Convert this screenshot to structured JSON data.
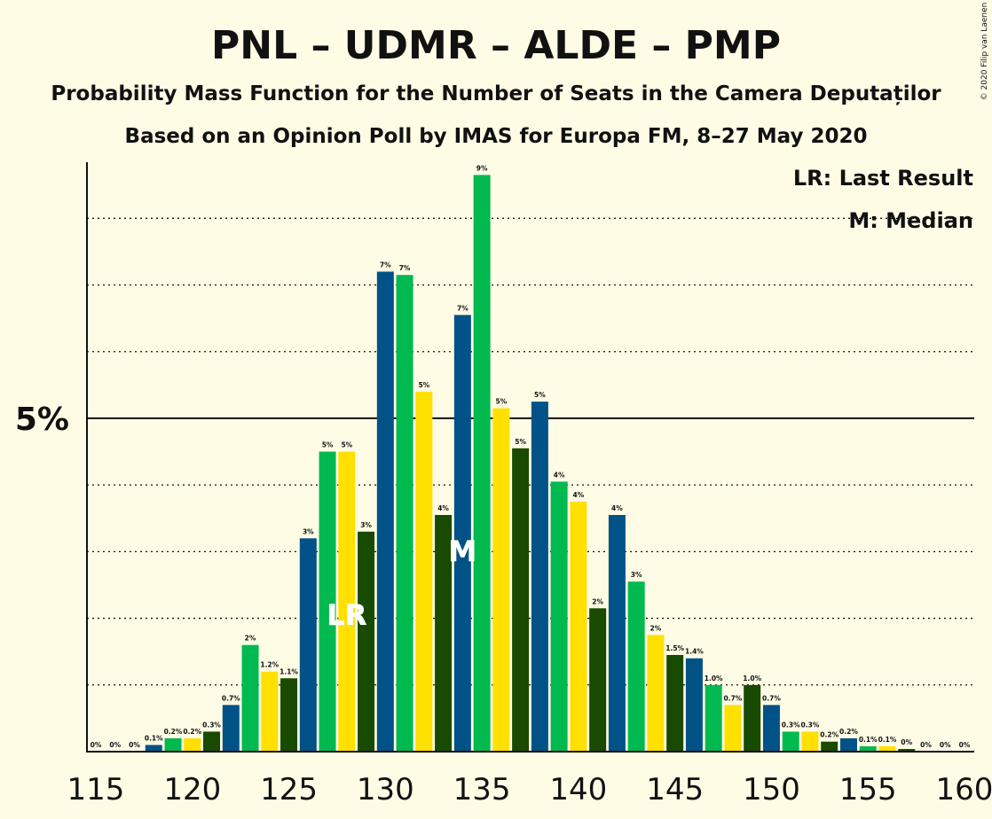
{
  "title": "PNL – UDMR – ALDE – PMP",
  "subtitle1": "Probability Mass Function for the Number of Seats in the Camera Deputaților",
  "subtitle2": "Based on an Opinion Poll by IMAS for Europa FM, 8–27 May 2020",
  "copyright": "© 2020 Filip van Laenen",
  "legend": {
    "lr": "LR: Last Result",
    "m": "M: Median"
  },
  "markers": {
    "lr_label": "LR",
    "lr_seat": 128,
    "m_label": "M",
    "m_seat": 134
  },
  "colors": {
    "blue": "#005287",
    "green": "#00B94F",
    "yellow": "#FFE000",
    "darkgreen": "#184A00",
    "background": "#FFFCE6"
  },
  "chart_data": {
    "type": "bar",
    "x": [
      115,
      116,
      117,
      118,
      119,
      120,
      121,
      122,
      123,
      124,
      125,
      126,
      127,
      128,
      129,
      130,
      131,
      132,
      133,
      134,
      135,
      136,
      137,
      138,
      139,
      140,
      141,
      142,
      143,
      144,
      145,
      146,
      147,
      148,
      149,
      150,
      151,
      152,
      153,
      154,
      155,
      156,
      157,
      158,
      159,
      160
    ],
    "values": [
      0,
      0,
      0,
      0.1,
      0.2,
      0.2,
      0.3,
      0.7,
      1.6,
      1.2,
      1.1,
      3.2,
      4.5,
      4.5,
      3.3,
      7.2,
      7.15,
      5.4,
      3.55,
      6.55,
      8.65,
      5.15,
      4.55,
      5.25,
      4.05,
      3.75,
      2.15,
      3.55,
      2.55,
      1.75,
      1.45,
      1.4,
      1.0,
      0.7,
      1.0,
      0.7,
      0.3,
      0.3,
      0.15,
      0.2,
      0.08,
      0.08,
      0.04,
      0,
      0,
      0
    ],
    "labels": [
      "0%",
      "0%",
      "0%",
      "0.1%",
      "0.2%",
      "0.2%",
      "0.3%",
      "0.7%",
      "2%",
      "1.2%",
      "1.1%",
      "3%",
      "5%",
      "5%",
      "3%",
      "7%",
      "7%",
      "5%",
      "4%",
      "7%",
      "9%",
      "5%",
      "5%",
      "5%",
      "4%",
      "4%",
      "2%",
      "4%",
      "3%",
      "2%",
      "1.5%",
      "1.4%",
      "1.0%",
      "0.7%",
      "1.0%",
      "0.7%",
      "0.3%",
      "0.3%",
      "0.2%",
      "0.2%",
      "0.1%",
      "0.1%",
      "0%",
      "0%",
      "0%",
      "0%"
    ],
    "x_ticks": [
      115,
      120,
      125,
      130,
      135,
      140,
      145,
      150,
      155,
      160
    ],
    "x_tick_labels": [
      "115",
      "120",
      "125",
      "130",
      "135",
      "140",
      "145",
      "150",
      "155",
      "160"
    ],
    "y_tick_labels": [
      "5%"
    ],
    "y_tick_values": [
      5
    ],
    "ylim": [
      0,
      9.4
    ],
    "grid": "dotted-horizontal",
    "legend_position": "top-right",
    "xlabel": "",
    "ylabel": ""
  }
}
